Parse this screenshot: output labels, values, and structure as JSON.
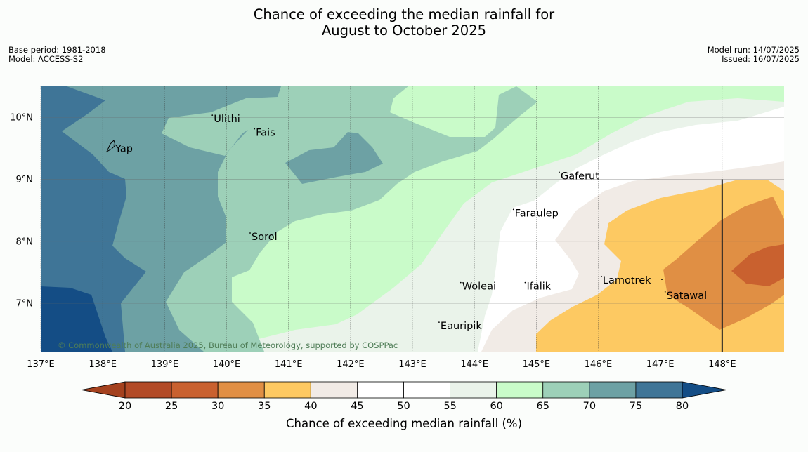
{
  "title": {
    "line1": "Chance of exceeding the median rainfall for",
    "line2": "August to October 2025"
  },
  "meta_left": {
    "base_period": "Base period: 1981-2018",
    "model": "Model: ACCESS-S2"
  },
  "meta_right": {
    "model_run": "Model run: 14/07/2025",
    "issued": "Issued: 16/07/2025"
  },
  "map": {
    "extent": {
      "lon_min": 137.0,
      "lon_max": 149.0,
      "lat_min": 6.22,
      "lat_max": 10.5
    },
    "lon_ticks": [
      {
        "value": 137,
        "label": "137°E"
      },
      {
        "value": 138,
        "label": "138°E"
      },
      {
        "value": 139,
        "label": "139°E"
      },
      {
        "value": 140,
        "label": "140°E"
      },
      {
        "value": 141,
        "label": "141°E"
      },
      {
        "value": 142,
        "label": "142°E"
      },
      {
        "value": 143,
        "label": "143°E"
      },
      {
        "value": 144,
        "label": "144°E"
      },
      {
        "value": 145,
        "label": "145°E"
      },
      {
        "value": 146,
        "label": "146°E"
      },
      {
        "value": 147,
        "label": "147°E"
      },
      {
        "value": 148,
        "label": "148°E"
      }
    ],
    "lat_ticks": [
      {
        "value": 10,
        "label": "10°N"
      },
      {
        "value": 9,
        "label": "9°N"
      },
      {
        "value": 8,
        "label": "8°N"
      },
      {
        "value": 7,
        "label": "7°N"
      }
    ],
    "places": [
      {
        "name": "Yap",
        "lon": 138.18,
        "lat": 9.52
      },
      {
        "name": "Ulithi",
        "lon": 139.77,
        "lat": 10.0
      },
      {
        "name": "Fais",
        "lon": 140.45,
        "lat": 9.78
      },
      {
        "name": "Sorol",
        "lon": 140.38,
        "lat": 8.1
      },
      {
        "name": "Gaferut",
        "lon": 145.37,
        "lat": 9.08
      },
      {
        "name": "Faraulep",
        "lon": 144.63,
        "lat": 8.48
      },
      {
        "name": "Lamotrek",
        "lon": 146.05,
        "lat": 7.4
      },
      {
        "name": "Woleai",
        "lon": 143.78,
        "lat": 7.3
      },
      {
        "name": "Ifalik",
        "lon": 144.82,
        "lat": 7.3
      },
      {
        "name": "Satawal",
        "lon": 147.08,
        "lat": 7.15
      },
      {
        "name": "Eauripik",
        "lon": 143.43,
        "lat": 6.66
      }
    ],
    "meridian_line_lon": 148,
    "copyright": "© Commonwealth of Australia 2025, Bureau of Meteorology, supported by COSPPac"
  },
  "colorbar": {
    "ticks": [
      "20",
      "25",
      "30",
      "35",
      "40",
      "45",
      "50",
      "55",
      "60",
      "65",
      "70",
      "75",
      "80"
    ],
    "colors": [
      "#b24a26",
      "#c9612f",
      "#e08f44",
      "#fdc962",
      "#f1ebe6",
      "#ffffff",
      "#ffffff",
      "#eaf3ea",
      "#c9fbc9",
      "#9dd0b8",
      "#6da1a4",
      "#3f7597"
    ],
    "under_color": "#a4411e",
    "over_color": "#144d85",
    "label": "Chance of exceeding median rainfall (%)"
  },
  "colors": {
    "c75_80": "#3f7597",
    "c70_75": "#6da1a4",
    "c65_70": "#9dd0b8",
    "c60_65": "#c9fbc9",
    "c55_60": "#eaf3ea",
    "c45_55": "#ffffff",
    "c40_45": "#f1ebe6",
    "c35_40": "#fdc962",
    "c30_35": "#e08f44",
    "c25_30": "#c9612f",
    "c80plus": "#144d85"
  }
}
